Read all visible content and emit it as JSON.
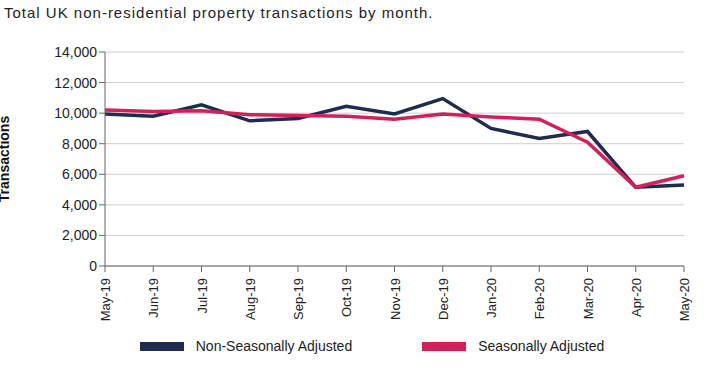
{
  "chart_data": {
    "type": "line",
    "title": "Total UK non-residential property transactions by month.",
    "y_label": "Transactions",
    "categories": [
      "May-19",
      "Jun-19",
      "Jul-19",
      "Aug-19",
      "Sep-19",
      "Oct-19",
      "Nov-19",
      "Dec-19",
      "Jan-20",
      "Feb-20",
      "Mar-20",
      "Apr-20",
      "May-20"
    ],
    "series": [
      {
        "name": "Non-Seasonally Adjusted",
        "color": "#1d2c4f",
        "values": [
          9950,
          9800,
          10550,
          9500,
          9650,
          10450,
          9950,
          10950,
          9000,
          8350,
          8800,
          5150,
          5300
        ]
      },
      {
        "name": "Seasonally Adjusted",
        "color": "#d4205a",
        "values": [
          10200,
          10100,
          10150,
          9900,
          9850,
          9800,
          9600,
          9950,
          9750,
          9600,
          8100,
          5150,
          5900
        ]
      }
    ],
    "ylim": [
      0,
      14000
    ],
    "yticks": [
      0,
      {
        "value": 2000,
        "label": "2,000"
      },
      {
        "value": 4000,
        "label": "4,000"
      },
      {
        "value": 6000,
        "label": "6,000"
      },
      {
        "value": 8000,
        "label": "8,000"
      },
      {
        "value": 10000,
        "label": "10,000"
      },
      {
        "value": 12000,
        "label": "12,000"
      },
      {
        "value": 14000,
        "label": "14,000"
      }
    ],
    "grid": true,
    "legend": "bottom"
  }
}
